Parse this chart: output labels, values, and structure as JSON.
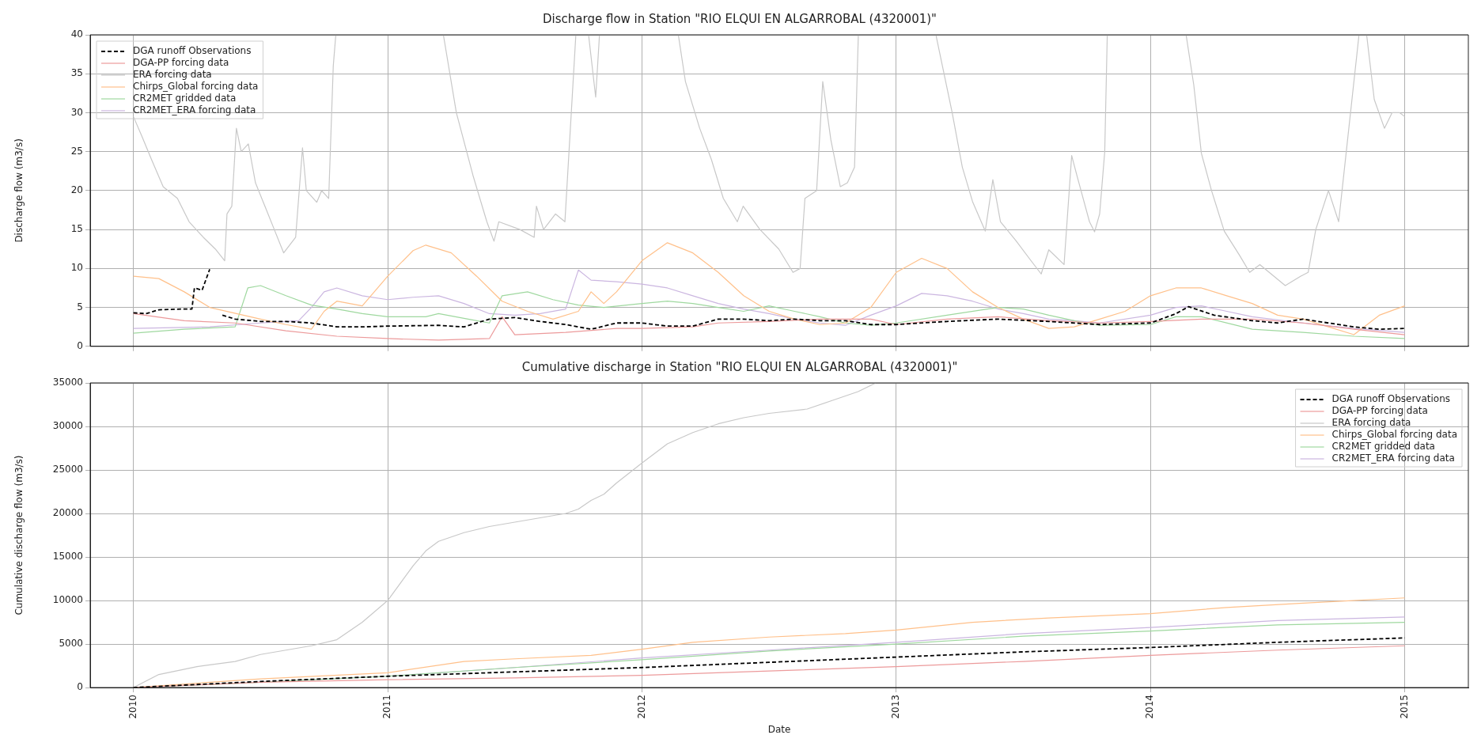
{
  "chart_data": [
    {
      "type": "line",
      "title": "Discharge flow in Station \"RIO ELQUI EN ALGARROBAL (4320001)\"",
      "ylabel": "Discharge flow (m3/s)",
      "xlim": [
        2009.83,
        2015.25
      ],
      "xticks": [
        2010,
        2011,
        2012,
        2013,
        2014,
        2015
      ],
      "ylim": [
        0,
        40
      ],
      "yticks": [
        0,
        5,
        10,
        15,
        20,
        25,
        30,
        35,
        40
      ],
      "grid": true,
      "legend": "top left",
      "tick_labels": "y",
      "series": [
        {
          "name": "DGA runoff Observations",
          "color": "#000000",
          "line_style": "dashed",
          "x": [
            2010,
            2010.05,
            2010.1,
            2010.2,
            2010.23,
            2010.24,
            2010.27,
            2010.3,
            2010.32,
            2010.35,
            2010.4,
            2010.5,
            2010.6,
            2010.7,
            2010.8,
            2010.9,
            2011,
            2011.2,
            2011.3,
            2011.4,
            2011.5,
            2011.6,
            2011.7,
            2011.8,
            2011.9,
            2012,
            2012.1,
            2012.2,
            2012.3,
            2012.4,
            2012.5,
            2012.6,
            2012.7,
            2012.8,
            2012.9,
            2013,
            2013.2,
            2013.4,
            2013.6,
            2013.8,
            2014,
            2014.1,
            2014.15,
            2014.25,
            2014.4,
            2014.5,
            2014.6,
            2014.7,
            2014.8,
            2014.9,
            2015
          ],
          "values": [
            4.3,
            4.2,
            4.7,
            4.8,
            4.8,
            7.5,
            7.2,
            9.9,
            null,
            4,
            3.5,
            3.2,
            3.2,
            3,
            2.5,
            2.5,
            2.6,
            2.7,
            2.5,
            3.5,
            3.7,
            3.2,
            2.8,
            2.2,
            3,
            3,
            2.6,
            2.6,
            3.5,
            3.5,
            3.3,
            3.5,
            3.3,
            3.3,
            2.8,
            2.8,
            3.2,
            3.5,
            3.2,
            2.8,
            3,
            4.2,
            5.1,
            4,
            3.3,
            3,
            3.5,
            3,
            2.5,
            2.2,
            2.3
          ]
        },
        {
          "name": "DGA-PP forcing data",
          "color": "#ec9a9b",
          "line_style": "solid",
          "x": [
            2010,
            2010.2,
            2010.4,
            2010.6,
            2010.8,
            2011,
            2011.2,
            2011.4,
            2011.45,
            2011.5,
            2011.7,
            2011.9,
            2012,
            2012.2,
            2012.3,
            2012.5,
            2012.7,
            2012.9,
            2013,
            2013.2,
            2013.4,
            2013.6,
            2013.8,
            2014,
            2014.2,
            2014.4,
            2014.6,
            2014.8,
            2015
          ],
          "values": [
            4.2,
            3.3,
            3,
            2,
            1.3,
            1,
            0.8,
            1,
            3.8,
            1.5,
            1.8,
            2.3,
            2.3,
            2.5,
            3,
            3.2,
            3.5,
            3.5,
            2.8,
            3.5,
            3.8,
            3.3,
            3,
            3.2,
            3.5,
            3.5,
            3,
            2.2,
            1.5
          ]
        },
        {
          "name": "ERA forcing data",
          "color": "#c8c8c8",
          "line_style": "solid",
          "x": [
            2010,
            2010.033,
            2010.071,
            2010.117,
            2010.173,
            2010.219,
            2010.275,
            2010.322,
            2010.359,
            2010.368,
            2010.387,
            2010.405,
            2010.424,
            2010.452,
            2010.48,
            2010.517,
            2010.554,
            2010.591,
            2010.638,
            2010.665,
            2010.68,
            2010.721,
            2010.74,
            2010.768,
            2010.786,
            2010.796,
            2011,
            2011.219,
            2011.27,
            2011.335,
            2011.39,
            2011.418,
            2011.437,
            2011.52,
            2011.576,
            2011.585,
            2011.613,
            2011.66,
            2011.697,
            2011.74,
            2011.76,
            2011.79,
            2011.818,
            2011.833,
            2012,
            2012.143,
            2012.171,
            2012.227,
            2012.273,
            2012.32,
            2012.375,
            2012.398,
            2012.464,
            2012.538,
            2012.594,
            2012.622,
            2012.641,
            2012.687,
            2012.711,
            2012.743,
            2012.78,
            2012.808,
            2012.836,
            2012.851,
            2013,
            2013.156,
            2013.22,
            2013.26,
            2013.3,
            2013.35,
            2013.38,
            2013.41,
            2013.47,
            2013.53,
            2013.57,
            2013.6,
            2013.66,
            2013.69,
            2013.71,
            2013.76,
            2013.78,
            2013.8,
            2013.82,
            2013.83,
            2014,
            2014.14,
            2014.17,
            2014.2,
            2014.24,
            2014.29,
            2014.35,
            2014.39,
            2014.43,
            2014.53,
            2014.59,
            2014.62,
            2014.65,
            2014.7,
            2014.74,
            2014.77,
            2014.82,
            2014.84,
            2014.85,
            2014.88,
            2014.92,
            2014.95,
            2014.98,
            2015
          ],
          "values": [
            29.5,
            27,
            24,
            20.5,
            19,
            16,
            14,
            12.5,
            11,
            17,
            18,
            28,
            25,
            26,
            21,
            18,
            15,
            12,
            14,
            25.5,
            20,
            18.5,
            20,
            19,
            36,
            40,
            null,
            40,
            30,
            22,
            16,
            13.5,
            16,
            15,
            14,
            18,
            15,
            17,
            16,
            40,
            null,
            40,
            32,
            40,
            null,
            40,
            34,
            28,
            24,
            19,
            16,
            18,
            15,
            12.5,
            9.5,
            10,
            19,
            20,
            34,
            26.5,
            20.5,
            21,
            23,
            40,
            null,
            40,
            30,
            23,
            18.6,
            14.8,
            21.4,
            16,
            13.6,
            11,
            9.3,
            12.4,
            10.5,
            24.5,
            22,
            16,
            14.7,
            17,
            25,
            40,
            null,
            40,
            33.6,
            24.8,
            20,
            14.8,
            11.7,
            9.5,
            10.5,
            7.8,
            9,
            9.5,
            15,
            20,
            16,
            25,
            40,
            null,
            40,
            31.7,
            28,
            30,
            30,
            29.5
          ]
        },
        {
          "name": "Chirps_Global forcing data",
          "color": "#ffc08a",
          "line_style": "solid",
          "x": [
            2010,
            2010.1,
            2010.2,
            2010.3,
            2010.5,
            2010.6,
            2010.7,
            2010.75,
            2010.8,
            2010.9,
            2011,
            2011.1,
            2011.15,
            2011.25,
            2011.35,
            2011.45,
            2011.55,
            2011.65,
            2011.75,
            2011.8,
            2011.85,
            2011.9,
            2012,
            2012.1,
            2012.2,
            2012.3,
            2012.4,
            2012.5,
            2012.6,
            2012.7,
            2012.8,
            2012.9,
            2013,
            2013.1,
            2013.2,
            2013.3,
            2013.4,
            2013.5,
            2013.6,
            2013.7,
            2013.8,
            2013.9,
            2014,
            2014.1,
            2014.2,
            2014.3,
            2014.4,
            2014.5,
            2014.6,
            2014.7,
            2014.8,
            2014.9,
            2015
          ],
          "values": [
            9,
            8.7,
            7,
            5,
            3.5,
            2.8,
            2.2,
            4.5,
            5.8,
            5.2,
            9,
            12.3,
            13,
            12,
            9,
            5.8,
            4.5,
            3.5,
            4.5,
            7,
            5.5,
            7,
            11,
            13.3,
            12,
            9.5,
            6.5,
            4.5,
            3.5,
            2.8,
            3,
            5,
            9.5,
            11.3,
            10,
            7,
            5,
            3.5,
            2.3,
            2.5,
            3.5,
            4.5,
            6.5,
            7.5,
            7.5,
            6.5,
            5.5,
            4,
            3.5,
            2.5,
            1.5,
            4,
            5.2
          ]
        },
        {
          "name": "CR2MET gridded data",
          "color": "#9fd89f",
          "line_style": "solid",
          "x": [
            2010,
            2010.2,
            2010.4,
            2010.45,
            2010.5,
            2010.6,
            2010.7,
            2010.8,
            2010.9,
            2011,
            2011.15,
            2011.2,
            2011.35,
            2011.4,
            2011.45,
            2011.55,
            2011.65,
            2011.75,
            2011.85,
            2012,
            2012.1,
            2012.2,
            2012.3,
            2012.4,
            2012.5,
            2012.6,
            2012.7,
            2012.8,
            2012.9,
            2013,
            2013.2,
            2013.4,
            2013.5,
            2013.6,
            2013.7,
            2013.8,
            2014,
            2014.1,
            2014.2,
            2014.4,
            2014.6,
            2014.8,
            2015
          ],
          "values": [
            1.7,
            2.2,
            2.5,
            7.5,
            7.8,
            6.5,
            5.3,
            4.8,
            4.2,
            3.8,
            3.8,
            4.2,
            3.3,
            3,
            6.5,
            7,
            6,
            5.3,
            5,
            5.5,
            5.8,
            5.5,
            5,
            4.5,
            5.2,
            4.5,
            3.8,
            3,
            2.7,
            3,
            4,
            5,
            4.8,
            4,
            3.3,
            2.7,
            2.8,
            3.8,
            3.8,
            2.2,
            1.8,
            1.3,
            1
          ]
        },
        {
          "name": "CR2MET_ERA forcing data",
          "color": "#cbb6e0",
          "line_style": "solid",
          "x": [
            2010,
            2010.3,
            2010.5,
            2010.65,
            2010.7,
            2010.75,
            2010.8,
            2010.9,
            2011,
            2011.1,
            2011.2,
            2011.3,
            2011.4,
            2011.5,
            2011.6,
            2011.7,
            2011.75,
            2011.8,
            2011.9,
            2012,
            2012.1,
            2012.2,
            2012.3,
            2012.4,
            2012.5,
            2012.6,
            2012.7,
            2012.8,
            2012.9,
            2013,
            2013.1,
            2013.2,
            2013.3,
            2013.4,
            2013.5,
            2013.6,
            2013.7,
            2013.8,
            2014,
            2014.1,
            2014.2,
            2014.3,
            2014.4,
            2014.6,
            2014.8,
            2015
          ],
          "values": [
            2.3,
            2.5,
            3,
            3.3,
            5,
            7,
            7.5,
            6.5,
            6,
            6.3,
            6.5,
            5.5,
            4.2,
            4,
            4.2,
            4.8,
            9.8,
            8.5,
            8.3,
            8,
            7.5,
            6.5,
            5.5,
            4.8,
            4.2,
            3.5,
            3,
            2.7,
            4,
            5.2,
            6.8,
            6.5,
            5.8,
            4.8,
            4.2,
            3.5,
            3.3,
            3,
            4,
            5,
            5.2,
            4.5,
            3.8,
            3,
            2.3,
            1.8
          ]
        }
      ]
    },
    {
      "type": "line",
      "title": "Cumulative discharge in Station \"RIO ELQUI EN ALGARROBAL (4320001)\"",
      "xlabel": "Date",
      "ylabel": "Cumulative discharge flow (m3/s)",
      "xlim": [
        2009.83,
        2015.25
      ],
      "xticks": [
        2010,
        2011,
        2012,
        2013,
        2014,
        2015
      ],
      "ylim": [
        0,
        35000
      ],
      "yticks": [
        0,
        5000,
        10000,
        15000,
        20000,
        25000,
        30000,
        35000
      ],
      "grid": true,
      "legend": "top right",
      "series": [
        {
          "name": "DGA runoff Observations",
          "color": "#000000",
          "line_style": "dashed",
          "x": [
            2010,
            2010.5,
            2011,
            2011.5,
            2012,
            2012.5,
            2013,
            2013.5,
            2014,
            2014.5,
            2015
          ],
          "values": [
            0,
            700,
            1300,
            1800,
            2300,
            2900,
            3500,
            4100,
            4600,
            5200,
            5700
          ]
        },
        {
          "name": "DGA-PP forcing data",
          "color": "#ec9a9b",
          "line_style": "solid",
          "x": [
            2010,
            2010.5,
            2011,
            2011.5,
            2012,
            2012.5,
            2013,
            2013.5,
            2014,
            2014.5,
            2015
          ],
          "values": [
            0,
            600,
            900,
            1100,
            1400,
            1900,
            2400,
            3000,
            3700,
            4300,
            4800
          ]
        },
        {
          "name": "ERA forcing data",
          "color": "#c8c8c8",
          "line_style": "solid",
          "x": [
            2010,
            2010.1,
            2010.25,
            2010.4,
            2010.5,
            2010.6,
            2010.7,
            2010.8,
            2010.9,
            2011,
            2011.05,
            2011.1,
            2011.15,
            2011.2,
            2011.3,
            2011.4,
            2011.5,
            2011.6,
            2011.7,
            2011.75,
            2011.8,
            2011.85,
            2011.9,
            2012,
            2012.1,
            2012.2,
            2012.3,
            2012.4,
            2012.5,
            2012.65,
            2012.75,
            2012.85,
            2012.92
          ],
          "values": [
            0,
            1500,
            2400,
            3000,
            3800,
            4300,
            4800,
            5500,
            7500,
            10000,
            12000,
            14000,
            15700,
            16800,
            17800,
            18500,
            19000,
            19500,
            20000,
            20500,
            21500,
            22200,
            23500,
            25800,
            28000,
            29300,
            30300,
            31000,
            31500,
            32000,
            33000,
            34000,
            35000
          ]
        },
        {
          "name": "Chirps_Global forcing data",
          "color": "#ffc08a",
          "line_style": "solid",
          "x": [
            2010,
            2010.5,
            2011,
            2011.3,
            2011.5,
            2011.8,
            2012,
            2012.2,
            2012.5,
            2012.8,
            2013,
            2013.3,
            2013.6,
            2014,
            2014.3,
            2014.6,
            2015
          ],
          "values": [
            0,
            1000,
            1700,
            3000,
            3300,
            3700,
            4400,
            5200,
            5800,
            6200,
            6600,
            7500,
            8000,
            8500,
            9200,
            9700,
            10300
          ]
        },
        {
          "name": "CR2MET gridded data",
          "color": "#9fd89f",
          "line_style": "solid",
          "x": [
            2010,
            2010.5,
            2011,
            2011.5,
            2012,
            2012.5,
            2013,
            2013.5,
            2014,
            2014.5,
            2015
          ],
          "values": [
            0,
            600,
            1300,
            2300,
            3200,
            4200,
            5000,
            5900,
            6500,
            7200,
            7500
          ]
        },
        {
          "name": "CR2MET_ERA forcing data",
          "color": "#cbb6e0",
          "line_style": "solid",
          "x": [
            2010,
            2011,
            2011.5,
            2012,
            2012.5,
            2013,
            2013.5,
            2014,
            2014.5,
            2015
          ],
          "values": [
            0,
            1300,
            2300,
            3400,
            4300,
            5200,
            6200,
            6900,
            7700,
            8100
          ]
        }
      ]
    }
  ]
}
